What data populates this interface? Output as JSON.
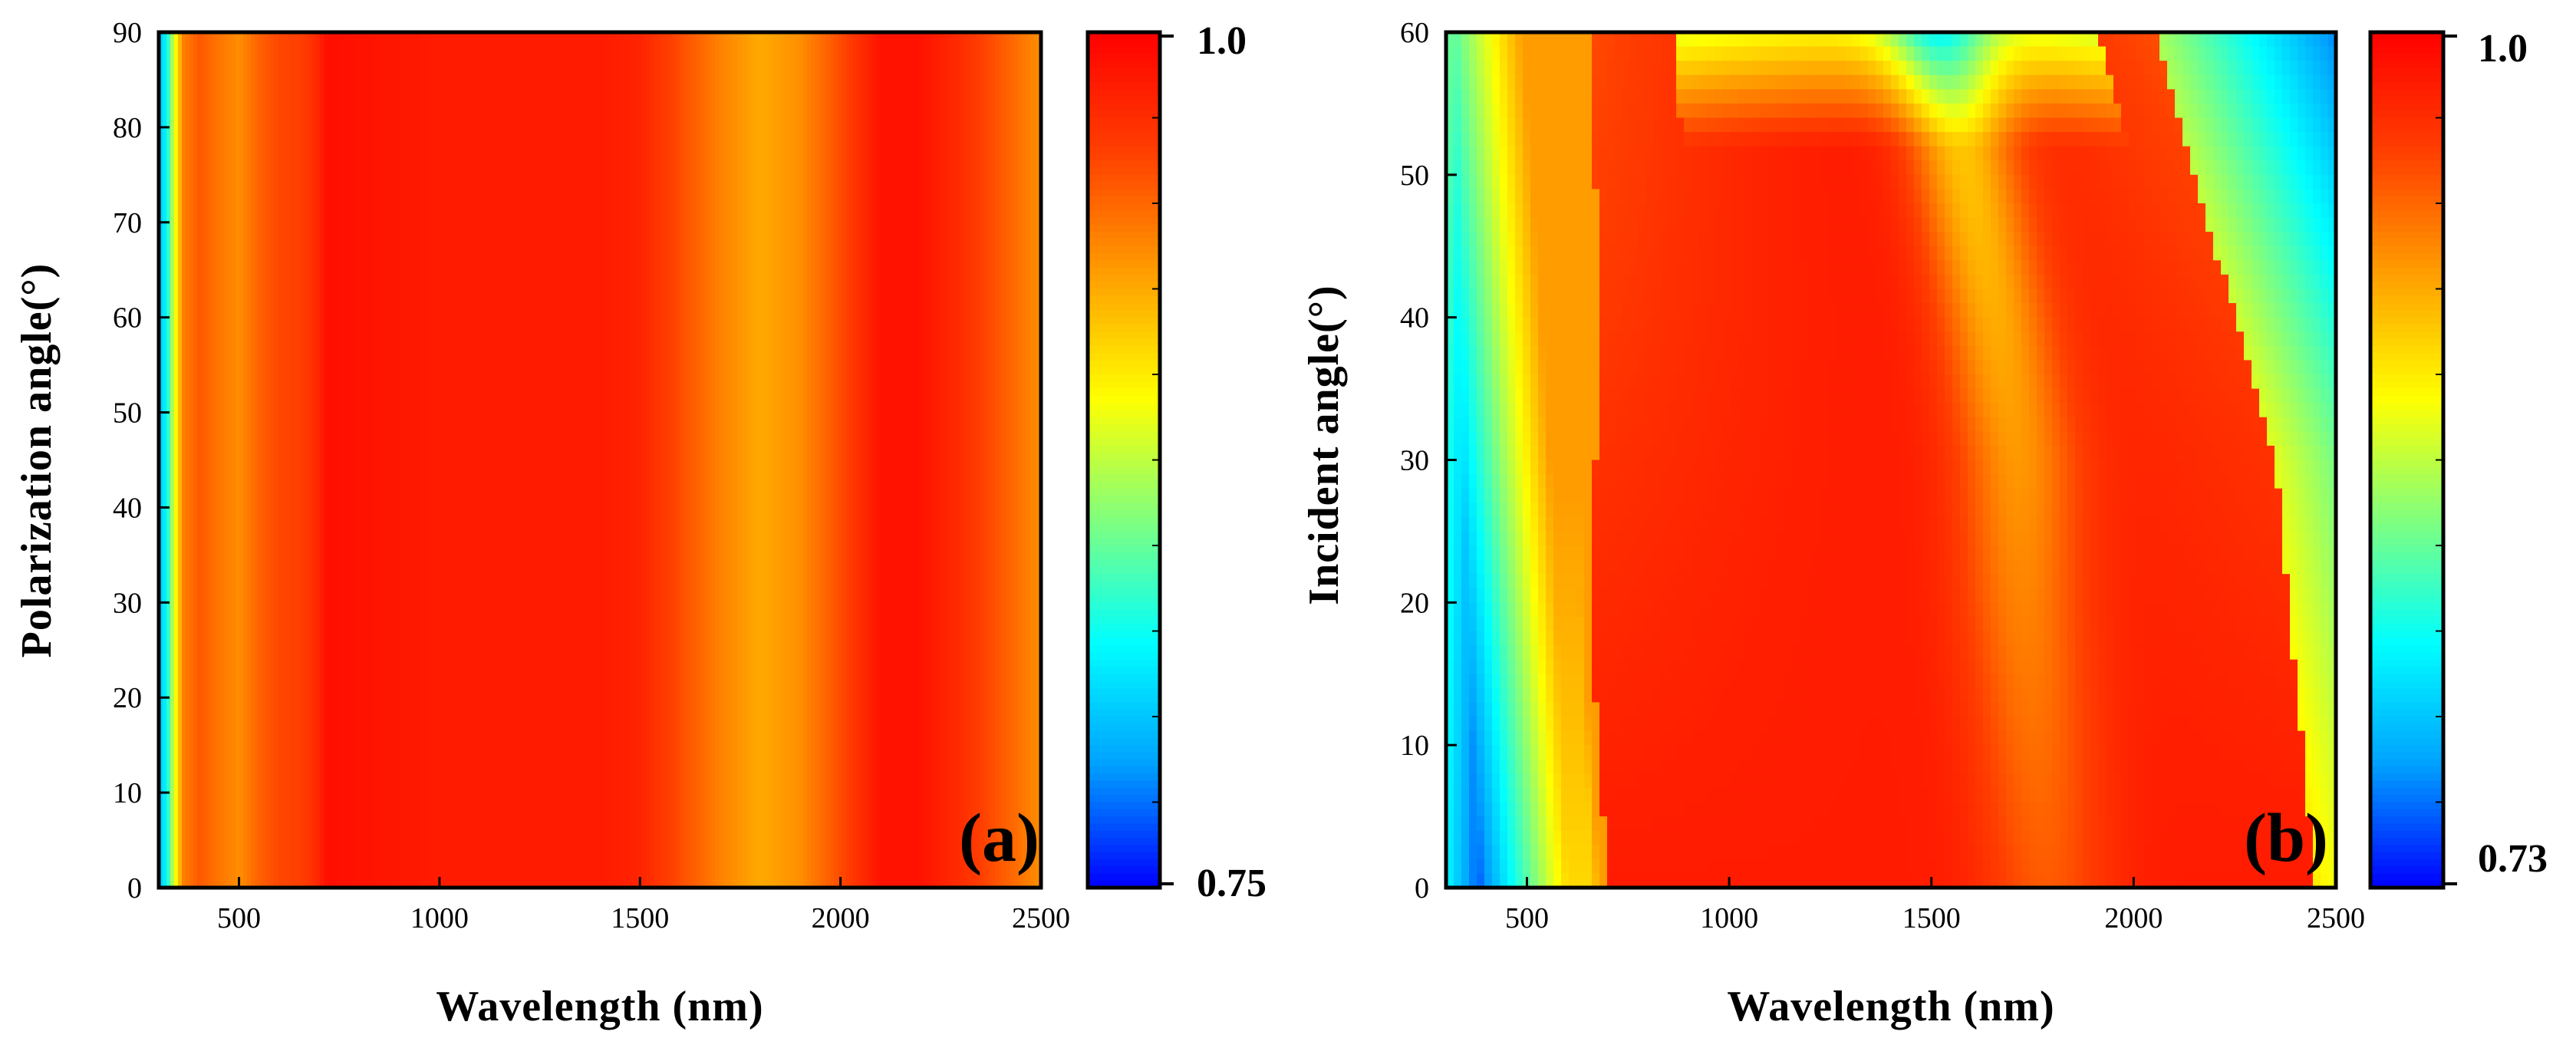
{
  "figure": {
    "background": "#ffffff",
    "colormap": [
      "#0000ff",
      "#00a0ff",
      "#00ffff",
      "#7fff7f",
      "#ffff00",
      "#ffa000",
      "#ff4000",
      "#ff0000"
    ]
  },
  "chart_data": [
    {
      "type": "heatmap",
      "panel_label": "(a)",
      "xlabel": "Wavelength (nm)",
      "ylabel": "Polarization angle(°)",
      "xlim": [
        300,
        2500
      ],
      "ylim": [
        0,
        90
      ],
      "xticks": [
        500,
        1000,
        1500,
        2000,
        2500
      ],
      "xtick_labels": [
        "500",
        "1000",
        "1500",
        "2000",
        "2500"
      ],
      "yticks": [
        0,
        10,
        20,
        30,
        40,
        50,
        60,
        70,
        80,
        90
      ],
      "ytick_labels": [
        "0",
        "10",
        "20",
        "30",
        "40",
        "50",
        "60",
        "70",
        "80",
        "90"
      ],
      "colorbar": {
        "min": 0.75,
        "max": 1.0,
        "tick_labels": [
          "1.0",
          "0.75"
        ]
      },
      "profile": {
        "description": "absorptance vs wavelength, independent of polarization angle",
        "wavelength": [
          300,
          320,
          330,
          345,
          360,
          400,
          450,
          500,
          550,
          600,
          650,
          690,
          720,
          800,
          1000,
          1200,
          1400,
          1500,
          1600,
          1700,
          1800,
          1900,
          2000,
          2100,
          2200,
          2300,
          2400,
          2500
        ],
        "value": [
          0.8,
          0.82,
          0.86,
          0.9,
          0.94,
          0.955,
          0.945,
          0.935,
          0.952,
          0.962,
          0.965,
          0.975,
          0.992,
          0.99,
          0.985,
          0.985,
          0.985,
          0.98,
          0.96,
          0.94,
          0.925,
          0.935,
          0.96,
          0.99,
          0.99,
          0.975,
          0.955,
          0.935
        ]
      }
    },
    {
      "type": "heatmap",
      "panel_label": "(b)",
      "xlabel": "Wavelength (nm)",
      "ylabel": "Incident angle(°)",
      "xlim": [
        300,
        2500
      ],
      "ylim": [
        0,
        60
      ],
      "xticks": [
        500,
        1000,
        1500,
        2000,
        2500
      ],
      "xtick_labels": [
        "500",
        "1000",
        "1500",
        "2000",
        "2500"
      ],
      "yticks": [
        0,
        10,
        20,
        30,
        40,
        50,
        60
      ],
      "ytick_labels": [
        "0",
        "10",
        "20",
        "30",
        "40",
        "50",
        "60"
      ],
      "colorbar": {
        "min": 0.73,
        "max": 1.0,
        "tick_labels": [
          "1.0",
          "0.73"
        ]
      },
      "features": {
        "description": "absorptance map vs wavelength and incident angle; low-absorption band at short wavelengths near normal incidence, steep cutoff boundary near 700 nm at normal incidence shifting toward 650 nm at 60°, high-absorption plateau 750–2000 nm, long-wavelength edge moving from ~2450 nm at 0° to ~2050 nm at 60°",
        "low_band_center_nm_at": [
          [
            0,
            380
          ],
          [
            30,
            340
          ],
          [
            60,
            320
          ]
        ],
        "cutoff_boundary_nm_at": [
          [
            0,
            700
          ],
          [
            20,
            655
          ],
          [
            40,
            685
          ],
          [
            60,
            650
          ]
        ],
        "long_edge_nm_at": [
          [
            0,
            2450
          ],
          [
            30,
            2350
          ],
          [
            60,
            2050
          ]
        ]
      }
    }
  ]
}
